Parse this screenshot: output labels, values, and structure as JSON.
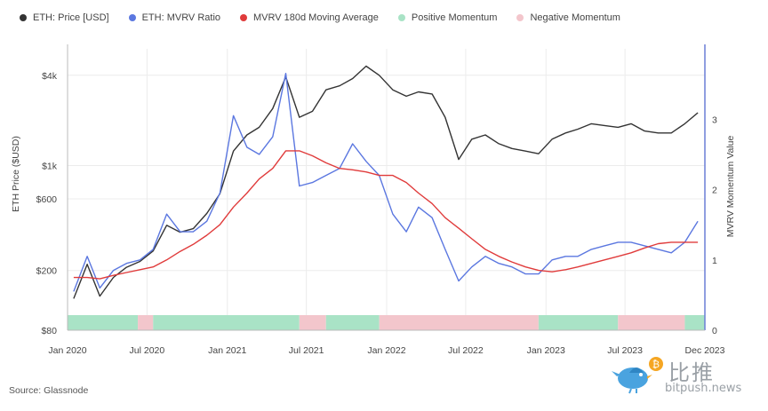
{
  "legend": [
    {
      "label": "ETH: Price [USD]",
      "color": "#333333"
    },
    {
      "label": "ETH: MVRV Ratio",
      "color": "#5b77e0"
    },
    {
      "label": "MVRV 180d Moving Average",
      "color": "#e03b3b"
    },
    {
      "label": "Positive Momentum",
      "color": "#a9e3c6"
    },
    {
      "label": "Negative Momentum",
      "color": "#f3c6cc"
    }
  ],
  "source": "Source: Glassnode",
  "watermark": {
    "cn": "比推",
    "url": "bitpush.news",
    "icon": "bird-bitcoin-logo"
  },
  "chart_data": {
    "type": "line",
    "ylabel": "ETH Price ($USD)",
    "y2label": "MVRV Momentum Value",
    "y_scale": "log",
    "ylim": [
      80,
      6000
    ],
    "y2lim": [
      0,
      4
    ],
    "x_ticks": [
      "Jan 2020",
      "Jul 2020",
      "Jan 2021",
      "Jul 2021",
      "Jan 2022",
      "Jul 2022",
      "Jan 2023",
      "Jul 2023",
      "Dec 2023"
    ],
    "y_ticks": [
      "$80",
      "$200",
      "$600",
      "$1k",
      "$4k"
    ],
    "y_tick_values": [
      80,
      200,
      600,
      1000,
      4000
    ],
    "y2_ticks": [
      "0",
      "1",
      "2",
      "3"
    ],
    "y2_tick_values": [
      0,
      1,
      2,
      3
    ],
    "x": [
      "2020-01",
      "2020-02",
      "2020-03",
      "2020-04",
      "2020-05",
      "2020-06",
      "2020-07",
      "2020-08",
      "2020-09",
      "2020-10",
      "2020-11",
      "2020-12",
      "2021-01",
      "2021-02",
      "2021-03",
      "2021-04",
      "2021-05",
      "2021-06",
      "2021-07",
      "2021-08",
      "2021-09",
      "2021-10",
      "2021-11",
      "2021-12",
      "2022-01",
      "2022-02",
      "2022-03",
      "2022-04",
      "2022-05",
      "2022-06",
      "2022-07",
      "2022-08",
      "2022-09",
      "2022-10",
      "2022-11",
      "2022-12",
      "2023-01",
      "2023-02",
      "2023-03",
      "2023-04",
      "2023-05",
      "2023-06",
      "2023-07",
      "2023-08",
      "2023-09",
      "2023-10",
      "2023-11",
      "2023-12"
    ],
    "series": [
      {
        "name": "ETH: Price [USD]",
        "axis": "left",
        "color": "#333333",
        "values": [
          130,
          220,
          135,
          180,
          210,
          230,
          270,
          400,
          360,
          380,
          480,
          650,
          1250,
          1600,
          1800,
          2400,
          3900,
          2100,
          2300,
          3200,
          3400,
          3800,
          4600,
          4000,
          3200,
          2900,
          3100,
          3000,
          2100,
          1100,
          1500,
          1600,
          1400,
          1300,
          1250,
          1200,
          1500,
          1650,
          1750,
          1900,
          1850,
          1800,
          1900,
          1700,
          1650,
          1650,
          1900,
          2250
        ]
      },
      {
        "name": "ETH: MVRV Ratio",
        "axis": "right",
        "color": "#5b77e0",
        "values": [
          0.55,
          1.05,
          0.6,
          0.85,
          0.95,
          1.0,
          1.15,
          1.65,
          1.4,
          1.4,
          1.55,
          1.95,
          3.05,
          2.6,
          2.5,
          2.75,
          3.65,
          2.05,
          2.1,
          2.2,
          2.3,
          2.65,
          2.4,
          2.2,
          1.65,
          1.4,
          1.75,
          1.6,
          1.15,
          0.7,
          0.9,
          1.05,
          0.95,
          0.9,
          0.8,
          0.8,
          1.0,
          1.05,
          1.05,
          1.15,
          1.2,
          1.25,
          1.25,
          1.2,
          1.15,
          1.1,
          1.25,
          1.55
        ]
      },
      {
        "name": "MVRV 180d Moving Average",
        "axis": "right",
        "color": "#e03b3b",
        "values": [
          0.75,
          0.75,
          0.73,
          0.78,
          0.82,
          0.86,
          0.9,
          1.0,
          1.12,
          1.22,
          1.35,
          1.5,
          1.75,
          1.95,
          2.15,
          2.3,
          2.55,
          2.55,
          2.48,
          2.38,
          2.3,
          2.28,
          2.25,
          2.2,
          2.2,
          2.1,
          1.95,
          1.8,
          1.6,
          1.45,
          1.3,
          1.15,
          1.05,
          0.97,
          0.9,
          0.85,
          0.83,
          0.86,
          0.9,
          0.95,
          1.0,
          1.05,
          1.1,
          1.17,
          1.23,
          1.25,
          1.25,
          1.25
        ]
      }
    ],
    "momentum": [
      {
        "from": "2020-01-01",
        "to": "2020-06-10",
        "state": "positive"
      },
      {
        "from": "2020-06-10",
        "to": "2020-07-15",
        "state": "negative"
      },
      {
        "from": "2020-07-15",
        "to": "2021-06-15",
        "state": "positive"
      },
      {
        "from": "2021-06-15",
        "to": "2021-08-15",
        "state": "negative"
      },
      {
        "from": "2021-08-15",
        "to": "2021-12-15",
        "state": "positive"
      },
      {
        "from": "2021-12-15",
        "to": "2022-12-15",
        "state": "negative"
      },
      {
        "from": "2022-12-15",
        "to": "2023-06-15",
        "state": "positive"
      },
      {
        "from": "2023-06-15",
        "to": "2023-11-15",
        "state": "negative"
      },
      {
        "from": "2023-11-15",
        "to": "2023-12-31",
        "state": "positive"
      }
    ]
  }
}
